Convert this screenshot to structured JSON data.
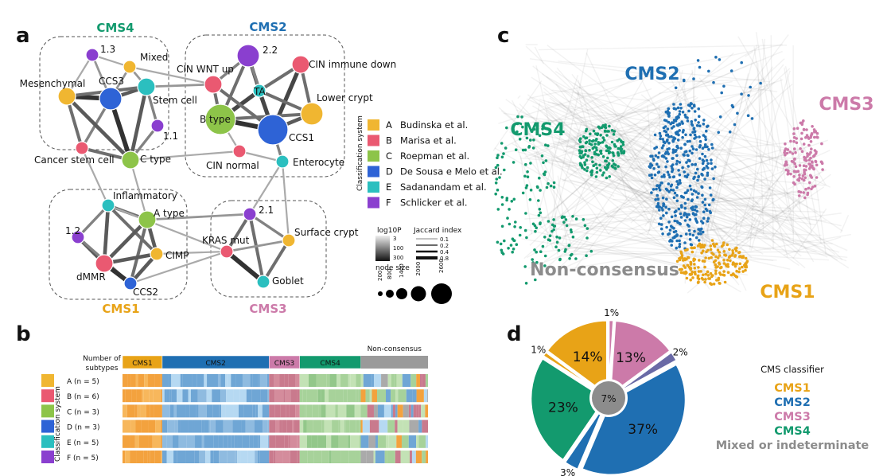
{
  "panels": {
    "a": "a",
    "b": "b",
    "c": "c",
    "d": "d"
  },
  "colors": {
    "CMS1": "#e8a317",
    "CMS2": "#1f6fb2",
    "CMS3": "#cc7aa9",
    "CMS4": "#139a6e",
    "NonConsensus": "#8c8c8c",
    "A": "#f0b631",
    "B": "#ea5971",
    "C": "#8dc449",
    "D": "#2e63d6",
    "E": "#2bbfbf",
    "F": "#8a3fcf"
  },
  "network": {
    "clusters": [
      {
        "id": "CMS4",
        "label": "CMS4"
      },
      {
        "id": "CMS2",
        "label": "CMS2"
      },
      {
        "id": "CMS1",
        "label": "CMS1"
      },
      {
        "id": "CMS3",
        "label": "CMS3"
      }
    ],
    "nodes": [
      {
        "id": "1.3",
        "label": "1.3",
        "system": "F",
        "size": 1
      },
      {
        "id": "Mixed",
        "label": "Mixed",
        "system": "A",
        "size": 1
      },
      {
        "id": "CCS3",
        "label": "CCS3",
        "system": "D",
        "size": 3
      },
      {
        "id": "Mesenchymal",
        "label": "Mesenchymal",
        "system": "A",
        "size": 2
      },
      {
        "id": "StemCell",
        "label": "Stem cell",
        "system": "E",
        "size": 2
      },
      {
        "id": "1.1",
        "label": "1.1",
        "system": "F",
        "size": 1
      },
      {
        "id": "CancerStemCell",
        "label": "Cancer stem cell",
        "system": "B",
        "size": 1
      },
      {
        "id": "CType",
        "label": "C type",
        "system": "C",
        "size": 2
      },
      {
        "id": "2.2",
        "label": "2.2",
        "system": "F",
        "size": 3
      },
      {
        "id": "CINWNTup",
        "label": "CIN WNT up",
        "system": "B",
        "size": 2
      },
      {
        "id": "CINimmunedown",
        "label": "CIN immune down",
        "system": "B",
        "size": 2
      },
      {
        "id": "TA",
        "label": "TA",
        "system": "E",
        "size": 1
      },
      {
        "id": "BType",
        "label": "B type",
        "system": "C",
        "size": 4
      },
      {
        "id": "LowerCrypt",
        "label": "Lower crypt",
        "system": "A",
        "size": 3
      },
      {
        "id": "CCS1",
        "label": "CCS1",
        "system": "D",
        "size": 4
      },
      {
        "id": "CINnormal",
        "label": "CIN normal",
        "system": "B",
        "size": 1
      },
      {
        "id": "Enterocyte",
        "label": "Enterocyte",
        "system": "E",
        "size": 1
      },
      {
        "id": "Inflammatory",
        "label": "Inflammatory",
        "system": "E",
        "size": 1
      },
      {
        "id": "AType",
        "label": "A type",
        "system": "C",
        "size": 2
      },
      {
        "id": "1.2",
        "label": "1.2",
        "system": "F",
        "size": 1
      },
      {
        "id": "CIMP",
        "label": "CIMP",
        "system": "A",
        "size": 1
      },
      {
        "id": "dMMR",
        "label": "dMMR",
        "system": "B",
        "size": 2
      },
      {
        "id": "CCS2",
        "label": "CCS2",
        "system": "D",
        "size": 1
      },
      {
        "id": "2.1",
        "label": "2.1",
        "system": "F",
        "size": 1
      },
      {
        "id": "SurfaceCrypt",
        "label": "Surface crypt",
        "system": "A",
        "size": 1
      },
      {
        "id": "KRASmut",
        "label": "KRAS mut",
        "system": "B",
        "size": 1
      },
      {
        "id": "Goblet",
        "label": "Goblet",
        "system": "E",
        "size": 1
      }
    ],
    "edges": [
      [
        "CCS3",
        "Mesenchymal",
        0.8
      ],
      [
        "CCS3",
        "StemCell",
        0.6
      ],
      [
        "CCS3",
        "CType",
        0.8
      ],
      [
        "CCS3",
        "CancerStemCell",
        0.4
      ],
      [
        "Mesenchymal",
        "CType",
        0.6
      ],
      [
        "Mesenchymal",
        "CancerStemCell",
        0.5
      ],
      [
        "StemCell",
        "CType",
        0.6
      ],
      [
        "StemCell",
        "1.1",
        0.4
      ],
      [
        "1.1",
        "CType",
        0.4
      ],
      [
        "CancerStemCell",
        "CType",
        0.5
      ],
      [
        "1.3",
        "CCS3",
        0.3
      ],
      [
        "Mixed",
        "CCS3",
        0.3
      ],
      [
        "Mixed",
        "StemCell",
        0.3
      ],
      [
        "Mesenchymal",
        "StemCell",
        0.5
      ],
      [
        "1.3",
        "Mixed",
        0.2
      ],
      [
        "2.2",
        "TA",
        0.6
      ],
      [
        "2.2",
        "CINWNTup",
        0.4
      ],
      [
        "2.2",
        "BType",
        0.5
      ],
      [
        "2.2",
        "CCS1",
        0.4
      ],
      [
        "CINimmunedown",
        "CCS1",
        0.7
      ],
      [
        "CINimmunedown",
        "LowerCrypt",
        0.5
      ],
      [
        "CINimmunedown",
        "TA",
        0.5
      ],
      [
        "TA",
        "BType",
        0.7
      ],
      [
        "TA",
        "CCS1",
        0.7
      ],
      [
        "TA",
        "LowerCrypt",
        0.5
      ],
      [
        "BType",
        "CCS1",
        0.8
      ],
      [
        "BType",
        "CINWNTup",
        0.5
      ],
      [
        "CCS1",
        "LowerCrypt",
        0.6
      ],
      [
        "CCS1",
        "Enterocyte",
        0.4
      ],
      [
        "BType",
        "CINnormal",
        0.2
      ],
      [
        "CINnormal",
        "Enterocyte",
        0.2
      ],
      [
        "BType",
        "LowerCrypt",
        0.5
      ],
      [
        "CINWNTup",
        "CCS1",
        0.5
      ],
      [
        "Inflammatory",
        "AType",
        0.5
      ],
      [
        "Inflammatory",
        "1.2",
        0.4
      ],
      [
        "Inflammatory",
        "dMMR",
        0.6
      ],
      [
        "Inflammatory",
        "CIMP",
        0.5
      ],
      [
        "AType",
        "CIMP",
        0.6
      ],
      [
        "AType",
        "dMMR",
        0.6
      ],
      [
        "AType",
        "CCS2",
        0.5
      ],
      [
        "1.2",
        "dMMR",
        0.6
      ],
      [
        "1.2",
        "CCS2",
        0.4
      ],
      [
        "dMMR",
        "CCS2",
        0.8
      ],
      [
        "CIMP",
        "CCS2",
        0.6
      ],
      [
        "dMMR",
        "CIMP",
        0.6
      ],
      [
        "2.1",
        "KRASmut",
        0.5
      ],
      [
        "2.1",
        "SurfaceCrypt",
        0.4
      ],
      [
        "2.1",
        "Goblet",
        0.5
      ],
      [
        "KRASmut",
        "Goblet",
        0.8
      ],
      [
        "SurfaceCrypt",
        "Goblet",
        0.5
      ],
      [
        "KRASmut",
        "SurfaceCrypt",
        0.3
      ],
      [
        "CINWNTup",
        "StemCell",
        0.3
      ],
      [
        "Mixed",
        "CINWNTup",
        0.2
      ],
      [
        "CType",
        "CINnormal",
        0.2
      ],
      [
        "CType",
        "AType",
        0.2
      ],
      [
        "CancerStemCell",
        "Inflammatory",
        0.2
      ],
      [
        "AType",
        "2.1",
        0.3
      ],
      [
        "CIMP",
        "KRASmut",
        0.2
      ],
      [
        "Enterocyte",
        "SurfaceCrypt",
        0.2
      ],
      [
        "Enterocyte",
        "2.1",
        0.2
      ],
      [
        "Inflammatory",
        "KRASmut",
        0.2
      ],
      [
        "CCS2",
        "KRASmut",
        0.2
      ],
      [
        "1.3",
        "Mesenchymal",
        0.2
      ]
    ],
    "legend": {
      "title": "Classification system",
      "items": [
        {
          "code": "A",
          "name": "Budinska et al."
        },
        {
          "code": "B",
          "name": "Marisa et al."
        },
        {
          "code": "C",
          "name": "Roepman et al."
        },
        {
          "code": "D",
          "name": "De Sousa e Melo et al."
        },
        {
          "code": "E",
          "name": "Sadanandam et al."
        },
        {
          "code": "F",
          "name": "Schlicker et al."
        }
      ],
      "log10p_title": "log10P",
      "log10p_ticks": [
        "3",
        "100",
        "300"
      ],
      "jaccard_title": "Jaccard index",
      "jaccard_ticks": [
        "0.1",
        "0.2",
        "0.4",
        "0.8"
      ],
      "nodesize_title": "node size",
      "nodesize_ticks": [
        "200",
        "800",
        "1400",
        "2000",
        "2600"
      ]
    }
  },
  "heatmap": {
    "header_label": "Number of subtypes",
    "y_title": "Classification system",
    "groups": [
      {
        "label": "CMS1",
        "start": 0,
        "end": 0.13
      },
      {
        "label": "CMS2",
        "start": 0.13,
        "end": 0.48
      },
      {
        "label": "CMS3",
        "start": 0.48,
        "end": 0.58
      },
      {
        "label": "CMS4",
        "start": 0.58,
        "end": 0.78
      },
      {
        "label": "Non-consensus",
        "start": 0.78,
        "end": 1.0
      }
    ],
    "rows": [
      {
        "code": "A",
        "label": "A (n = 5)"
      },
      {
        "code": "B",
        "label": "B (n = 6)"
      },
      {
        "code": "C",
        "label": "C (n = 3)"
      },
      {
        "code": "D",
        "label": "D (n = 3)"
      },
      {
        "code": "E",
        "label": "E (n = 5)"
      },
      {
        "code": "F",
        "label": "F (n = 5)"
      }
    ]
  },
  "cloud": {
    "labels": [
      {
        "text": "CMS2",
        "key": "CMS2"
      },
      {
        "text": "CMS3",
        "key": "CMS3"
      },
      {
        "text": "CMS4",
        "key": "CMS4"
      },
      {
        "text": "Non-consensus",
        "key": "NonConsensus"
      },
      {
        "text": "CMS1",
        "key": "CMS1"
      }
    ]
  },
  "chart_data": {
    "type": "pie",
    "title": "",
    "slices": [
      {
        "label": "14%",
        "value": 14,
        "key": "CMS1"
      },
      {
        "label": "1%",
        "value": 1,
        "key": "CMS3"
      },
      {
        "label": "13%",
        "value": 13,
        "key": "CMS3"
      },
      {
        "label": "2%",
        "value": 2,
        "key": "CMS3alt"
      },
      {
        "label": "37%",
        "value": 37,
        "key": "CMS2"
      },
      {
        "label": "3%",
        "value": 3,
        "key": "CMS2"
      },
      {
        "label": "23%",
        "value": 23,
        "key": "CMS4"
      },
      {
        "label": "1%",
        "value": 1,
        "key": "CMS1"
      }
    ],
    "center": {
      "label": "7%",
      "value": 7,
      "key": "NonConsensus"
    },
    "legend": {
      "title": "CMS classifier",
      "items": [
        {
          "text": "CMS1",
          "key": "CMS1"
        },
        {
          "text": "CMS2",
          "key": "CMS2"
        },
        {
          "text": "CMS3",
          "key": "CMS3"
        },
        {
          "text": "CMS4",
          "key": "CMS4"
        },
        {
          "text": "Mixed or indeterminate",
          "key": "NonConsensus"
        }
      ]
    }
  }
}
